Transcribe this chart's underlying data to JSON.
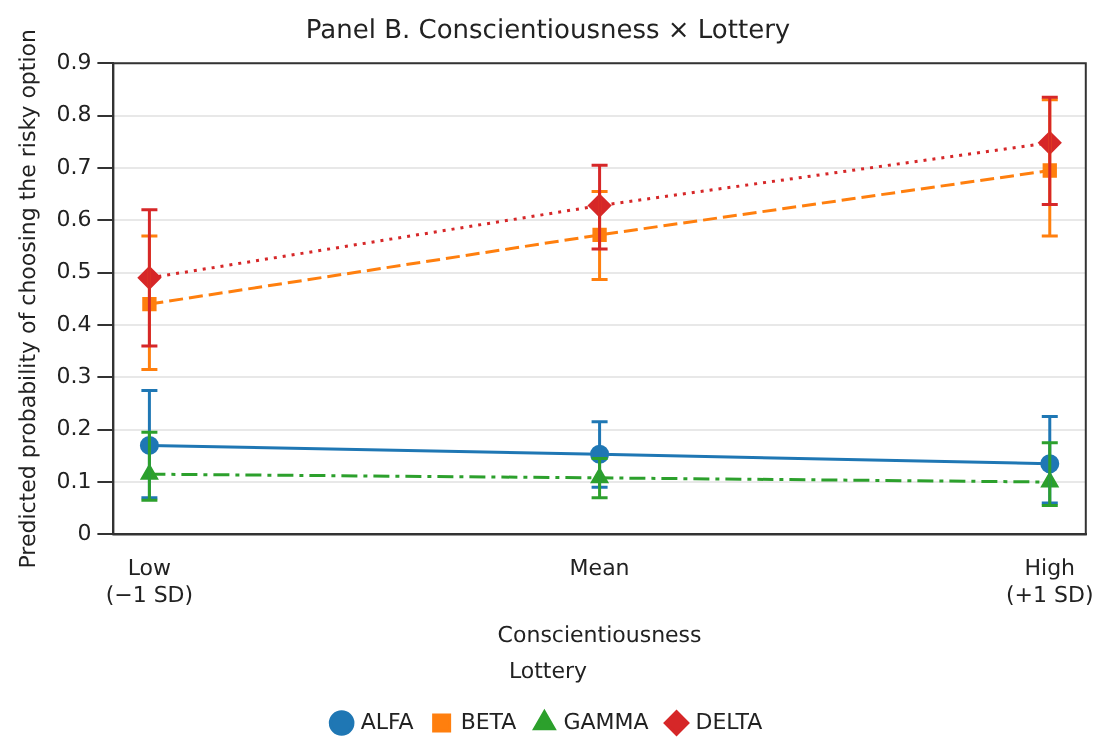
{
  "chart_data": {
    "type": "line",
    "title": "Panel B. Conscientiousness × Lottery",
    "xlabel": "Conscientiousness",
    "ylabel": "Predicted probability of choosing the risky option",
    "legend_title": "Lottery",
    "legend": "bottom",
    "grid": "y",
    "categories": [
      "Low\n(−1 SD)",
      "Mean",
      "High\n(+1 SD)"
    ],
    "ylim": [
      0,
      0.9
    ],
    "yticks": [
      0,
      0.1,
      0.2,
      0.3,
      0.4,
      0.5,
      0.6,
      0.7,
      0.8,
      0.9
    ],
    "series": [
      {
        "name": "ALFA",
        "color": "#1f77b4",
        "marker": "circle",
        "line_style": "solid",
        "values": [
          0.17,
          0.153,
          0.135
        ],
        "errors": [
          [
            0.07,
            0.275
          ],
          [
            0.09,
            0.215
          ],
          [
            0.06,
            0.225
          ]
        ]
      },
      {
        "name": "BETA",
        "color": "#ff7f0e",
        "marker": "square",
        "line_style": "dashed",
        "values": [
          0.44,
          0.572,
          0.695
        ],
        "errors": [
          [
            0.315,
            0.57
          ],
          [
            0.487,
            0.655
          ],
          [
            0.57,
            0.83
          ]
        ]
      },
      {
        "name": "GAMMA",
        "color": "#2ca02c",
        "marker": "triangle",
        "line_style": "dashdot",
        "values": [
          0.115,
          0.108,
          0.1
        ],
        "errors": [
          [
            0.065,
            0.195
          ],
          [
            0.07,
            0.145
          ],
          [
            0.055,
            0.175
          ]
        ]
      },
      {
        "name": "DELTA",
        "color": "#d62728",
        "marker": "diamond",
        "line_style": "dotted",
        "values": [
          0.49,
          0.628,
          0.748
        ],
        "errors": [
          [
            0.36,
            0.62
          ],
          [
            0.545,
            0.705
          ],
          [
            0.63,
            0.835
          ]
        ]
      }
    ]
  }
}
